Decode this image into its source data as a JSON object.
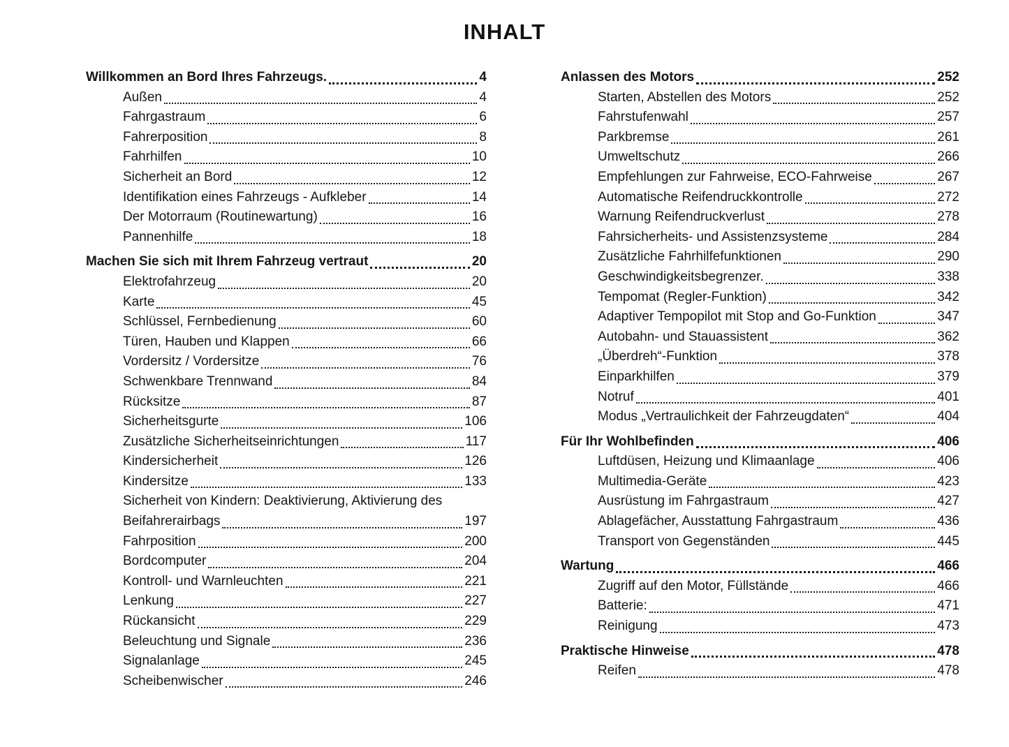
{
  "page_title": "INHALT",
  "columns": [
    {
      "sections": [
        {
          "title": "Willkommen an Bord Ihres Fahrzeugs.",
          "page": "4",
          "entries": [
            {
              "label": "Außen",
              "page": "4"
            },
            {
              "label": "Fahrgastraum",
              "page": "6"
            },
            {
              "label": "Fahrerposition",
              "page": "8"
            },
            {
              "label": "Fahrhilfen",
              "page": "10"
            },
            {
              "label": "Sicherheit an Bord",
              "page": "12"
            },
            {
              "label": "Identifikation eines Fahrzeugs - Aufkleber",
              "page": "14"
            },
            {
              "label": "Der Motorraum (Routinewartung)",
              "page": "16"
            },
            {
              "label": "Pannenhilfe",
              "page": "18"
            }
          ]
        },
        {
          "title": "Machen Sie sich mit Ihrem Fahrzeug vertraut",
          "page": "20",
          "entries": [
            {
              "label": "Elektrofahrzeug",
              "page": "20"
            },
            {
              "label": "Karte",
              "page": "45"
            },
            {
              "label": "Schlüssel, Fernbedienung",
              "page": "60"
            },
            {
              "label": "Türen, Hauben und Klappen",
              "page": "66"
            },
            {
              "label": "Vordersitz / Vordersitze",
              "page": "76"
            },
            {
              "label": "Schwenkbare Trennwand",
              "page": "84"
            },
            {
              "label": "Rücksitze",
              "page": "87"
            },
            {
              "label": "Sicherheitsgurte",
              "page": "106"
            },
            {
              "label": "Zusätzliche Sicherheitseinrichtungen",
              "page": "117"
            },
            {
              "label": "Kindersicherheit",
              "page": "126"
            },
            {
              "label": "Kindersitze",
              "page": "133"
            },
            {
              "label": "Sicherheit von Kindern: Deaktivierung, Aktivierung des",
              "page": null
            },
            {
              "label": "Beifahrerairbags",
              "page": "197"
            },
            {
              "label": "Fahrposition",
              "page": "200"
            },
            {
              "label": "Bordcomputer",
              "page": "204"
            },
            {
              "label": "Kontroll- und Warnleuchten",
              "page": "221"
            },
            {
              "label": "Lenkung",
              "page": "227"
            },
            {
              "label": "Rückansicht",
              "page": "229"
            },
            {
              "label": "Beleuchtung und Signale",
              "page": "236"
            },
            {
              "label": "Signalanlage",
              "page": "245"
            },
            {
              "label": "Scheibenwischer",
              "page": "246"
            }
          ]
        }
      ]
    },
    {
      "sections": [
        {
          "title": "Anlassen des Motors",
          "page": "252",
          "entries": [
            {
              "label": "Starten, Abstellen des Motors",
              "page": "252"
            },
            {
              "label": "Fahrstufenwahl",
              "page": "257"
            },
            {
              "label": "Parkbremse",
              "page": "261"
            },
            {
              "label": "Umweltschutz",
              "page": "266"
            },
            {
              "label": "Empfehlungen zur Fahrweise, ECO-Fahrweise",
              "page": "267"
            },
            {
              "label": "Automatische Reifendruckkontrolle",
              "page": "272"
            },
            {
              "label": "Warnung Reifendruckverlust",
              "page": "278"
            },
            {
              "label": "Fahrsicherheits- und Assistenzsysteme",
              "page": "284"
            },
            {
              "label": "Zusätzliche Fahrhilfefunktionen",
              "page": "290"
            },
            {
              "label": "Geschwindigkeitsbegrenzer.",
              "page": "338"
            },
            {
              "label": "Tempomat (Regler-Funktion)",
              "page": "342"
            },
            {
              "label": "Adaptiver Tempopilot mit Stop and Go-Funktion",
              "page": "347"
            },
            {
              "label": "Autobahn- und Stauassistent",
              "page": "362"
            },
            {
              "label": "„Überdreh“-Funktion",
              "page": "378"
            },
            {
              "label": "Einparkhilfen",
              "page": "379"
            },
            {
              "label": "Notruf",
              "page": "401"
            },
            {
              "label": "Modus „Vertraulichkeit der Fahrzeugdaten“",
              "page": "404"
            }
          ]
        },
        {
          "title": "Für Ihr Wohlbefinden",
          "page": "406",
          "entries": [
            {
              "label": "Luftdüsen, Heizung und Klimaanlage",
              "page": "406"
            },
            {
              "label": "Multimedia-Geräte",
              "page": "423"
            },
            {
              "label": "Ausrüstung im Fahrgastraum",
              "page": "427"
            },
            {
              "label": "Ablagefächer, Ausstattung Fahrgastraum",
              "page": "436"
            },
            {
              "label": "Transport von Gegenständen",
              "page": "445"
            }
          ]
        },
        {
          "title": "Wartung",
          "page": "466",
          "entries": [
            {
              "label": "Zugriff auf den Motor, Füllstände",
              "page": "466"
            },
            {
              "label": "Batterie:",
              "page": "471"
            },
            {
              "label": "Reinigung",
              "page": "473"
            }
          ]
        },
        {
          "title": "Praktische Hinweise",
          "page": "478",
          "entries": [
            {
              "label": "Reifen",
              "page": "478"
            }
          ]
        }
      ]
    }
  ]
}
